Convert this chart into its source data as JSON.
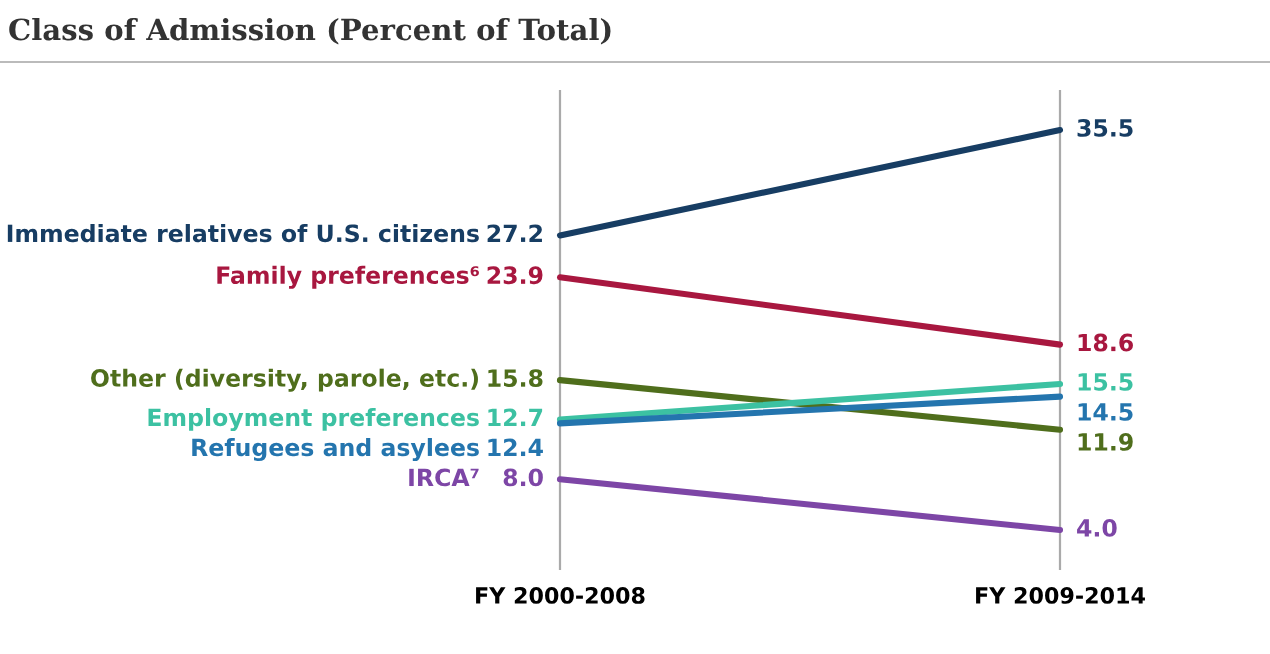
{
  "chart_data": {
    "type": "line",
    "title": "Class of Admission (Percent of Total)",
    "categories": [
      "FY 2000-2008",
      "FY 2009-2014"
    ],
    "grid": "x",
    "series": [
      {
        "name": "Immediate relatives of U.S. citizens",
        "color": "#173d63",
        "values": [
          27.2,
          35.5
        ],
        "value_labels": [
          "27.2",
          "35.5"
        ]
      },
      {
        "name": "Family preferences⁶",
        "color": "#a8173f",
        "values": [
          23.9,
          18.6
        ],
        "value_labels": [
          "23.9",
          "18.6"
        ]
      },
      {
        "name": "Other (diversity, parole, etc.)",
        "color": "#4f6e1c",
        "values": [
          15.8,
          11.9
        ],
        "value_labels": [
          "15.8",
          "11.9"
        ]
      },
      {
        "name": "Employment preferences",
        "color": "#3cc1a2",
        "values": [
          12.7,
          15.5
        ],
        "value_labels": [
          "12.7",
          "15.5"
        ]
      },
      {
        "name": "Refugees and asylees",
        "color": "#2475ae",
        "values": [
          12.4,
          14.5
        ],
        "value_labels": [
          "12.4",
          "14.5"
        ]
      },
      {
        "name": "IRCA⁷",
        "color": "#7d46a6",
        "values": [
          8.0,
          4.0
        ],
        "value_labels": [
          "8.0",
          "4.0"
        ]
      }
    ]
  }
}
